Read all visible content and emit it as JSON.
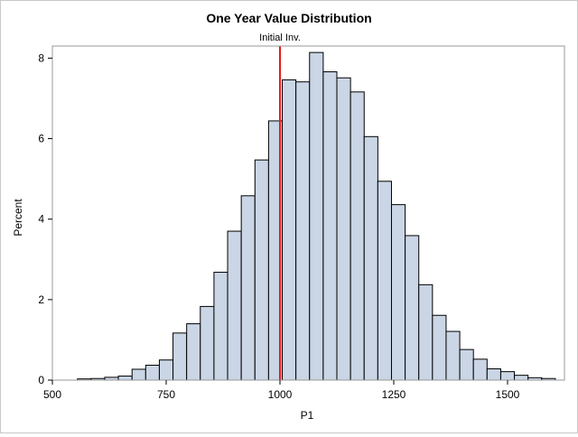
{
  "chart_data": {
    "type": "bar",
    "title": "One Year Value Distribution",
    "xlabel": "P1",
    "ylabel": "Percent",
    "xlim": [
      500,
      1625
    ],
    "ylim": [
      0,
      8.3
    ],
    "bin_width": 30,
    "x_ticks": [
      "500",
      "750",
      "1000",
      "1250",
      "1500"
    ],
    "y_ticks": [
      "0",
      "2",
      "4",
      "6",
      "8"
    ],
    "bins": [
      {
        "x": 570,
        "value": 0.03
      },
      {
        "x": 600,
        "value": 0.04
      },
      {
        "x": 630,
        "value": 0.07
      },
      {
        "x": 660,
        "value": 0.1
      },
      {
        "x": 690,
        "value": 0.27
      },
      {
        "x": 720,
        "value": 0.37
      },
      {
        "x": 750,
        "value": 0.5
      },
      {
        "x": 780,
        "value": 1.17
      },
      {
        "x": 810,
        "value": 1.4
      },
      {
        "x": 840,
        "value": 1.83
      },
      {
        "x": 870,
        "value": 2.68
      },
      {
        "x": 900,
        "value": 3.7
      },
      {
        "x": 930,
        "value": 4.58
      },
      {
        "x": 960,
        "value": 5.47
      },
      {
        "x": 990,
        "value": 6.44
      },
      {
        "x": 1020,
        "value": 7.46
      },
      {
        "x": 1050,
        "value": 7.41
      },
      {
        "x": 1080,
        "value": 8.14
      },
      {
        "x": 1110,
        "value": 7.66
      },
      {
        "x": 1140,
        "value": 7.51
      },
      {
        "x": 1170,
        "value": 7.16
      },
      {
        "x": 1200,
        "value": 6.05
      },
      {
        "x": 1230,
        "value": 4.94
      },
      {
        "x": 1260,
        "value": 4.36
      },
      {
        "x": 1290,
        "value": 3.59
      },
      {
        "x": 1320,
        "value": 2.37
      },
      {
        "x": 1350,
        "value": 1.61
      },
      {
        "x": 1380,
        "value": 1.21
      },
      {
        "x": 1410,
        "value": 0.76
      },
      {
        "x": 1440,
        "value": 0.52
      },
      {
        "x": 1470,
        "value": 0.28
      },
      {
        "x": 1500,
        "value": 0.21
      },
      {
        "x": 1530,
        "value": 0.12
      },
      {
        "x": 1560,
        "value": 0.06
      },
      {
        "x": 1590,
        "value": 0.04
      }
    ],
    "reference_line": {
      "x": 1000,
      "label": "Initial Inv.",
      "color": "#e31a1c"
    },
    "bar_fill": "#cad5e5",
    "bar_stroke": "#000000",
    "grid": false,
    "legend": "none"
  }
}
